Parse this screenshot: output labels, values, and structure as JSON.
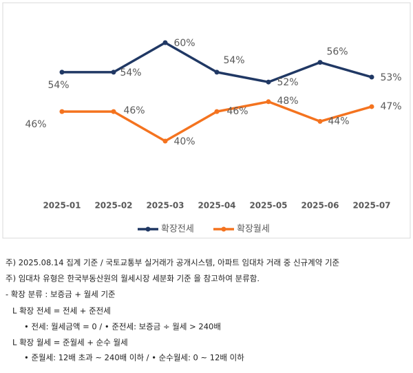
{
  "chart_data": {
    "type": "line",
    "categories": [
      "2025-01",
      "2025-02",
      "2025-03",
      "2025-04",
      "2025-05",
      "2025-06",
      "2025-07"
    ],
    "series": [
      {
        "name": "확장전세",
        "color": "#203864",
        "values": [
          54,
          54,
          60,
          54,
          52,
          56,
          53
        ],
        "value_labels": [
          "54%",
          "54%",
          "60%",
          "54%",
          "52%",
          "56%",
          "53%"
        ]
      },
      {
        "name": "확장월세",
        "color": "#f4731f",
        "values": [
          46,
          46,
          40,
          46,
          48,
          44,
          47
        ],
        "value_labels": [
          "46%",
          "46%",
          "40%",
          "46%",
          "48%",
          "44%",
          "47%"
        ]
      }
    ],
    "legend": "bottom"
  },
  "notes": [
    "주) 2025.08.14 집계 기준 / 국토교통부 실거래가 공개시스템, 아파트 임대차 거래 중 신규계약 기준",
    "주) 임대차 유형은 한국부동산원의 월세시장 세분화 기준 을 참고하여 분류함.",
    " - 확장 분류 : 보증금 + 월세 기준",
    "L 확장 전세 = 전세 + 준전세",
    "• 전세: 월세금액 = 0  / • 준전세: 보증금 ÷ 월세 > 240배",
    "L 확장 월세 = 준월세 + 순수 월세",
    "• 준월세: 12배 초과 ~ 240배 이하  / • 순수월세: 0 ~ 12배 이하"
  ]
}
